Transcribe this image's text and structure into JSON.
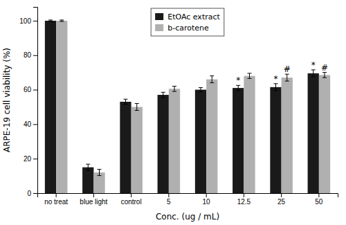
{
  "chart_data": {
    "type": "bar",
    "xlabel": "Conc. (ug / mL)",
    "ylabel": "ARPE-19 cell viability (%)",
    "categories": [
      "no treat",
      "blue light",
      "control",
      "5",
      "10",
      "12.5",
      "25",
      "50"
    ],
    "series": [
      {
        "name": "EtOAc extract",
        "color": "#1a1a1a",
        "values": [
          100,
          15,
          53,
          57,
          60,
          61,
          61.5,
          69.5
        ],
        "errors": [
          0.4,
          1.8,
          1.5,
          1.5,
          1.2,
          1.5,
          2.0,
          2.0
        ],
        "annotations": [
          null,
          null,
          null,
          null,
          null,
          "*",
          "*",
          "*"
        ]
      },
      {
        "name": "b-carotene",
        "color": "#b0b0b0",
        "values": [
          100,
          12,
          50,
          60.5,
          66,
          68,
          67,
          68.5
        ],
        "errors": [
          0.4,
          1.8,
          2.0,
          1.5,
          2.0,
          1.5,
          2.0,
          1.5
        ],
        "annotations": [
          null,
          null,
          null,
          null,
          null,
          null,
          "#",
          "#"
        ]
      }
    ],
    "ylim": [
      0,
      108
    ],
    "yticks": [
      0,
      20,
      40,
      60,
      80,
      100
    ],
    "grid": false,
    "legend": "upper center"
  }
}
